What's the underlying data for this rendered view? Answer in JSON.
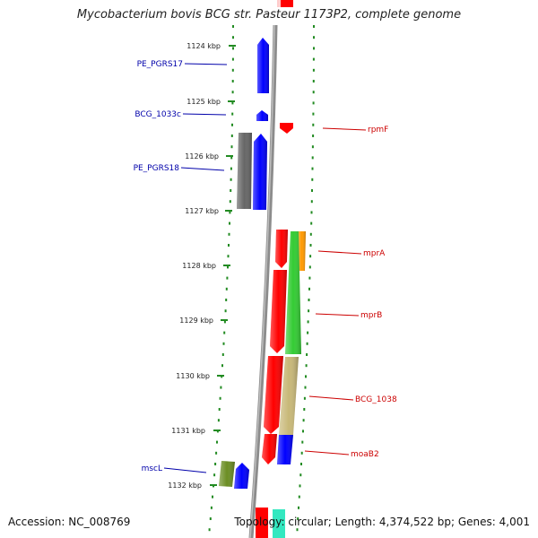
{
  "title": "Mycobacterium bovis BCG str. Pasteur 1173P2, complete genome",
  "accession_text": "Accession: NC_008769",
  "summary_text": "Topology: circular; Length: 4,374,522 bp; Genes: 4,001",
  "colors": {
    "forward": "#ff0000",
    "reverse": "#0000ff",
    "backbone": "#888888",
    "tick": "#228B22",
    "green": "#33cc33",
    "orange": "#ff9900",
    "khaki": "#c8b878",
    "gray": "#666666",
    "olive": "#6b8e23"
  },
  "ticks": [
    {
      "label": "1124 kbp"
    },
    {
      "label": "1125 kbp"
    },
    {
      "label": "1126 kbp"
    },
    {
      "label": "1127 kbp"
    },
    {
      "label": "1128 kbp"
    },
    {
      "label": "1129 kbp"
    },
    {
      "label": "1130 kbp"
    },
    {
      "label": "1131 kbp"
    },
    {
      "label": "1132 kbp"
    }
  ],
  "gene_labels": [
    {
      "name": "PE_PGRS17",
      "side": "left"
    },
    {
      "name": "BCG_1033c",
      "side": "left"
    },
    {
      "name": "PE_PGRS18",
      "side": "left"
    },
    {
      "name": "mscL",
      "side": "left"
    },
    {
      "name": "rpmF",
      "side": "right"
    },
    {
      "name": "mprA",
      "side": "right"
    },
    {
      "name": "mprB",
      "side": "right"
    },
    {
      "name": "BCG_1038",
      "side": "right"
    },
    {
      "name": "moaB2",
      "side": "right"
    }
  ]
}
